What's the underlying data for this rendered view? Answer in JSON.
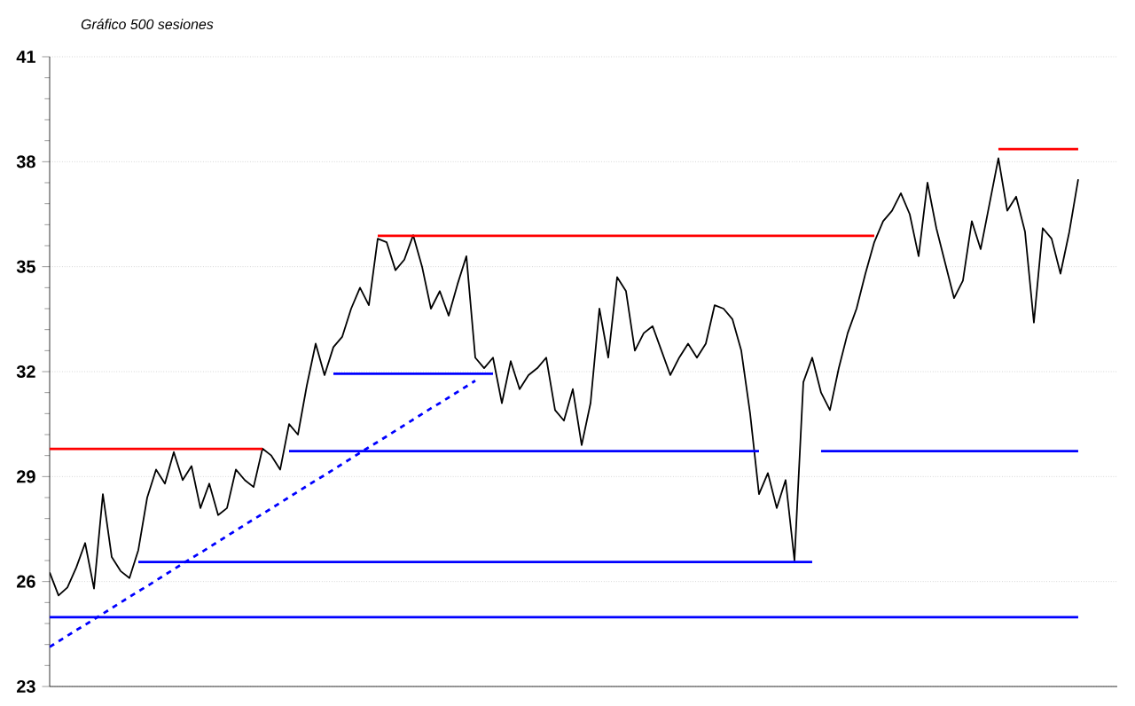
{
  "chart_data": {
    "type": "line",
    "title": "Gráfico 500 sesiones",
    "ylim": [
      23,
      41
    ],
    "categories": [
      null,
      null,
      null,
      null,
      null,
      null,
      null,
      null,
      null,
      null,
      null,
      null,
      null,
      null,
      null,
      null,
      null,
      null,
      null,
      null,
      null,
      null,
      null,
      null,
      null,
      null,
      null,
      null,
      null,
      null,
      null,
      null,
      null,
      null,
      null,
      null,
      null,
      null,
      null,
      null,
      null,
      null,
      null,
      null,
      null,
      null,
      null,
      null,
      null,
      null,
      null,
      null,
      null,
      null,
      null,
      null,
      null,
      null,
      null,
      null,
      null,
      null,
      null,
      null,
      null,
      null,
      null,
      null,
      null,
      null,
      null,
      null,
      null,
      null,
      null,
      null,
      null,
      null,
      null,
      null,
      null,
      null,
      null,
      null,
      null,
      null,
      null,
      null,
      null,
      null,
      null,
      null,
      null,
      null,
      null,
      null,
      null,
      null,
      null,
      null,
      null,
      null,
      null,
      null,
      null,
      null,
      null,
      null,
      null,
      null,
      null,
      null,
      null,
      null,
      null,
      null,
      null
    ],
    "yticks": [
      23,
      26,
      29,
      32,
      35,
      38,
      41
    ],
    "tick_labels": "y",
    "grid": "y",
    "marker": "none",
    "line_style": "solid",
    "series": [
      {
        "color": "#000000",
        "values": [
          26.26,
          25.6,
          25.83,
          26.4,
          27.1,
          25.8,
          28.5,
          26.7,
          26.3,
          26.1,
          26.9,
          28.4,
          29.2,
          28.8,
          29.7,
          28.9,
          29.3,
          28.1,
          28.8,
          27.9,
          28.1,
          29.2,
          28.9,
          28.7,
          29.8,
          29.6,
          29.2,
          30.5,
          30.2,
          31.6,
          32.8,
          31.9,
          32.7,
          33.0,
          33.8,
          34.4,
          33.9,
          35.8,
          35.7,
          34.9,
          35.2,
          35.9,
          35.0,
          33.8,
          34.3,
          33.6,
          34.5,
          35.3,
          32.4,
          32.1,
          32.4,
          31.1,
          32.3,
          31.5,
          31.9,
          32.1,
          32.4,
          30.9,
          30.6,
          31.5,
          29.9,
          31.1,
          33.8,
          32.4,
          34.7,
          34.3,
          32.6,
          33.1,
          33.3,
          32.6,
          31.9,
          32.4,
          32.8,
          32.4,
          32.8,
          33.9,
          33.8,
          33.5,
          32.6,
          30.8,
          28.5,
          29.1,
          28.1,
          28.9,
          26.6,
          31.7,
          32.4,
          31.4,
          30.9,
          32.1,
          33.1,
          33.8,
          34.8,
          35.7,
          36.3,
          36.6,
          37.1,
          36.5,
          35.3,
          37.4,
          36.1,
          35.1,
          34.1,
          34.6,
          36.3,
          35.5,
          36.8,
          38.1,
          36.6,
          37.0,
          36.0,
          33.4,
          36.1,
          35.8,
          34.8,
          36.0,
          37.5
        ]
      },
      {
        "color": "#ff0000",
        "values": [
          29.79,
          29.79,
          29.79,
          29.79,
          29.79,
          29.79,
          29.79,
          29.79,
          29.79,
          29.79,
          29.79,
          29.79,
          29.79,
          29.79,
          29.79,
          29.79,
          29.79,
          29.79,
          29.79,
          29.79,
          29.79,
          29.79,
          29.79,
          29.79,
          29.79,
          null,
          null,
          null,
          null,
          null,
          null,
          null,
          null,
          null,
          null,
          null,
          null,
          null,
          null,
          null,
          null,
          null,
          null,
          null,
          null,
          null,
          null,
          null,
          null,
          null,
          null,
          null,
          null,
          null,
          null,
          null,
          null,
          null,
          null,
          null,
          null,
          null,
          null,
          null,
          null,
          null,
          null,
          null,
          null,
          null,
          null,
          null,
          null,
          null,
          null,
          null,
          null,
          null,
          null,
          null,
          null,
          null,
          null,
          null,
          null,
          null,
          null,
          null,
          null,
          null,
          null,
          null,
          null,
          null,
          null,
          null,
          null,
          null,
          null,
          null,
          null,
          null,
          null,
          null,
          null,
          null,
          null,
          null,
          null,
          null,
          null,
          null,
          null,
          null,
          null,
          null,
          null
        ]
      },
      {
        "color": "#ff0000",
        "values": [
          null,
          null,
          null,
          null,
          null,
          null,
          null,
          null,
          null,
          null,
          null,
          null,
          null,
          null,
          null,
          null,
          null,
          null,
          null,
          null,
          null,
          null,
          null,
          null,
          null,
          null,
          null,
          null,
          null,
          null,
          null,
          null,
          null,
          null,
          null,
          null,
          null,
          35.88,
          35.88,
          35.88,
          35.88,
          35.88,
          35.88,
          35.88,
          35.88,
          35.88,
          35.88,
          35.88,
          35.88,
          35.88,
          35.88,
          35.88,
          35.88,
          35.88,
          35.88,
          35.88,
          35.88,
          35.88,
          35.88,
          35.88,
          35.88,
          35.88,
          35.88,
          35.88,
          35.88,
          35.88,
          35.88,
          35.88,
          35.88,
          35.88,
          35.88,
          35.88,
          35.88,
          35.88,
          35.88,
          35.88,
          35.88,
          35.88,
          35.88,
          35.88,
          35.88,
          35.88,
          35.88,
          35.88,
          35.88,
          35.88,
          35.88,
          35.88,
          35.88,
          35.88,
          35.88,
          35.88,
          35.88,
          35.88,
          null,
          null,
          null,
          null,
          null,
          null,
          null,
          null,
          null,
          null,
          null,
          null,
          null,
          null,
          null,
          null,
          null,
          null,
          null,
          null,
          null,
          null,
          null
        ]
      },
      {
        "color": "#ff0000",
        "values": [
          null,
          null,
          null,
          null,
          null,
          null,
          null,
          null,
          null,
          null,
          null,
          null,
          null,
          null,
          null,
          null,
          null,
          null,
          null,
          null,
          null,
          null,
          null,
          null,
          null,
          null,
          null,
          null,
          null,
          null,
          null,
          null,
          null,
          null,
          null,
          null,
          null,
          null,
          null,
          null,
          null,
          null,
          null,
          null,
          null,
          null,
          null,
          null,
          null,
          null,
          null,
          null,
          null,
          null,
          null,
          null,
          null,
          null,
          null,
          null,
          null,
          null,
          null,
          null,
          null,
          null,
          null,
          null,
          null,
          null,
          null,
          null,
          null,
          null,
          null,
          null,
          null,
          null,
          null,
          null,
          null,
          null,
          null,
          null,
          null,
          null,
          null,
          null,
          null,
          null,
          null,
          null,
          null,
          null,
          null,
          null,
          null,
          null,
          null,
          null,
          null,
          null,
          null,
          null,
          null,
          null,
          null,
          38.36,
          38.36,
          38.36,
          38.36,
          38.36,
          38.36,
          38.36,
          38.36,
          38.36,
          38.36
        ]
      },
      {
        "color": "#0000ff",
        "values": [
          null,
          null,
          null,
          null,
          null,
          null,
          null,
          null,
          null,
          null,
          null,
          null,
          null,
          null,
          null,
          null,
          null,
          null,
          null,
          null,
          null,
          null,
          null,
          null,
          null,
          null,
          null,
          null,
          null,
          null,
          null,
          null,
          31.94,
          31.94,
          31.94,
          31.94,
          31.94,
          31.94,
          31.94,
          31.94,
          31.94,
          31.94,
          31.94,
          31.94,
          31.94,
          31.94,
          31.94,
          31.94,
          31.94,
          31.94,
          31.94,
          null,
          null,
          null,
          null,
          null,
          null,
          null,
          null,
          null,
          null,
          null,
          null,
          null,
          null,
          null,
          null,
          null,
          null,
          null,
          null,
          null,
          null,
          null,
          null,
          null,
          null,
          null,
          null,
          null,
          null,
          null,
          null,
          null,
          null,
          null,
          null,
          null,
          null,
          null,
          null,
          null,
          null,
          null,
          null,
          null,
          null,
          null,
          null,
          null,
          null,
          null,
          null,
          null,
          null,
          null,
          null,
          null,
          null,
          null,
          null,
          null,
          null,
          null,
          null,
          null,
          null
        ]
      },
      {
        "color": "#0000ff",
        "values": [
          null,
          null,
          null,
          null,
          null,
          null,
          null,
          null,
          null,
          null,
          null,
          null,
          null,
          null,
          null,
          null,
          null,
          null,
          null,
          null,
          null,
          null,
          null,
          null,
          null,
          null,
          null,
          29.73,
          29.73,
          29.73,
          29.73,
          29.73,
          29.73,
          29.73,
          29.73,
          29.73,
          29.73,
          29.73,
          29.73,
          29.73,
          29.73,
          29.73,
          29.73,
          29.73,
          29.73,
          29.73,
          29.73,
          29.73,
          29.73,
          29.73,
          29.73,
          29.73,
          29.73,
          29.73,
          29.73,
          29.73,
          29.73,
          29.73,
          29.73,
          29.73,
          29.73,
          29.73,
          29.73,
          29.73,
          29.73,
          29.73,
          29.73,
          29.73,
          29.73,
          29.73,
          29.73,
          29.73,
          29.73,
          29.73,
          29.73,
          29.73,
          29.73,
          29.73,
          29.73,
          29.73,
          29.73,
          null,
          null,
          null,
          null,
          null,
          null,
          null,
          null,
          null,
          null,
          null,
          null,
          null,
          null,
          null,
          null,
          null,
          null,
          null,
          null,
          null,
          null,
          null,
          null,
          null,
          null,
          null,
          null,
          null,
          null,
          null,
          null,
          null,
          null,
          null,
          null
        ]
      },
      {
        "color": "#0000ff",
        "values": [
          null,
          null,
          null,
          null,
          null,
          null,
          null,
          null,
          null,
          null,
          null,
          null,
          null,
          null,
          null,
          null,
          null,
          null,
          null,
          null,
          null,
          null,
          null,
          null,
          null,
          null,
          null,
          null,
          null,
          null,
          null,
          null,
          null,
          null,
          null,
          null,
          null,
          null,
          null,
          null,
          null,
          null,
          null,
          null,
          null,
          null,
          null,
          null,
          null,
          null,
          null,
          null,
          null,
          null,
          null,
          null,
          null,
          null,
          null,
          null,
          null,
          null,
          null,
          null,
          null,
          null,
          null,
          null,
          null,
          null,
          null,
          null,
          null,
          null,
          null,
          null,
          null,
          null,
          null,
          null,
          null,
          null,
          null,
          null,
          null,
          null,
          null,
          29.73,
          29.73,
          29.73,
          29.73,
          29.73,
          29.73,
          29.73,
          29.73,
          29.73,
          29.73,
          29.73,
          29.73,
          29.73,
          29.73,
          29.73,
          29.73,
          29.73,
          29.73,
          29.73,
          29.73,
          29.73,
          29.73,
          29.73,
          29.73,
          29.73,
          29.73,
          29.73,
          29.73,
          29.73,
          29.73
        ]
      },
      {
        "color": "#0000ff",
        "values": [
          null,
          null,
          null,
          null,
          null,
          null,
          null,
          null,
          null,
          null,
          26.56,
          26.56,
          26.56,
          26.56,
          26.56,
          26.56,
          26.56,
          26.56,
          26.56,
          26.56,
          26.56,
          26.56,
          26.56,
          26.56,
          26.56,
          26.56,
          26.56,
          26.56,
          26.56,
          26.56,
          26.56,
          26.56,
          26.56,
          26.56,
          26.56,
          26.56,
          26.56,
          26.56,
          26.56,
          26.56,
          26.56,
          26.56,
          26.56,
          26.56,
          26.56,
          26.56,
          26.56,
          26.56,
          26.56,
          26.56,
          26.56,
          26.56,
          26.56,
          26.56,
          26.56,
          26.56,
          26.56,
          26.56,
          26.56,
          26.56,
          26.56,
          26.56,
          26.56,
          26.56,
          26.56,
          26.56,
          26.56,
          26.56,
          26.56,
          26.56,
          26.56,
          26.56,
          26.56,
          26.56,
          26.56,
          26.56,
          26.56,
          26.56,
          26.56,
          26.56,
          26.56,
          26.56,
          26.56,
          26.56,
          26.56,
          26.56,
          26.56,
          null,
          null,
          null,
          null,
          null,
          null,
          null,
          null,
          null,
          null,
          null,
          null,
          null,
          null,
          null,
          null,
          null,
          null,
          null,
          null,
          null,
          null,
          null,
          null,
          null,
          null,
          null,
          null,
          null,
          null
        ]
      },
      {
        "color": "#0000ff",
        "values": [
          24.98,
          24.98,
          24.98,
          24.98,
          24.98,
          24.98,
          24.98,
          24.98,
          24.98,
          24.98,
          24.98,
          24.98,
          24.98,
          24.98,
          24.98,
          24.98,
          24.98,
          24.98,
          24.98,
          24.98,
          24.98,
          24.98,
          24.98,
          24.98,
          24.98,
          24.98,
          24.98,
          24.98,
          24.98,
          24.98,
          24.98,
          24.98,
          24.98,
          24.98,
          24.98,
          24.98,
          24.98,
          24.98,
          24.98,
          24.98,
          24.98,
          24.98,
          24.98,
          24.98,
          24.98,
          24.98,
          24.98,
          24.98,
          24.98,
          24.98,
          24.98,
          24.98,
          24.98,
          24.98,
          24.98,
          24.98,
          24.98,
          24.98,
          24.98,
          24.98,
          24.98,
          24.98,
          24.98,
          24.98,
          24.98,
          24.98,
          24.98,
          24.98,
          24.98,
          24.98,
          24.98,
          24.98,
          24.98,
          24.98,
          24.98,
          24.98,
          24.98,
          24.98,
          24.98,
          24.98,
          24.98,
          24.98,
          24.98,
          24.98,
          24.98,
          24.98,
          24.98,
          24.98,
          24.98,
          24.98,
          24.98,
          24.98,
          24.98,
          24.98,
          24.98,
          24.98,
          24.98,
          24.98,
          24.98,
          24.98,
          24.98,
          24.98,
          24.98,
          24.98,
          24.98,
          24.98,
          24.98,
          24.98,
          24.98,
          24.98,
          24.98,
          24.98,
          24.98,
          24.98,
          24.98,
          24.98,
          24.98
        ]
      },
      {
        "color": "#0000ff",
        "line_style": "dashed",
        "values": [
          24.13,
          24.29,
          24.45,
          24.61,
          24.76,
          24.92,
          25.08,
          25.24,
          25.4,
          25.56,
          25.72,
          25.87,
          26.03,
          26.19,
          26.35,
          26.51,
          26.67,
          26.82,
          26.98,
          27.14,
          27.3,
          27.46,
          27.62,
          27.78,
          27.93,
          28.09,
          28.25,
          28.41,
          28.57,
          28.73,
          28.89,
          29.04,
          29.2,
          29.36,
          29.52,
          29.68,
          29.84,
          29.99,
          30.15,
          30.31,
          30.47,
          30.63,
          30.79,
          30.95,
          31.1,
          31.26,
          31.42,
          31.58,
          31.74,
          null,
          null,
          null,
          null,
          null,
          null,
          null,
          null,
          null,
          null,
          null,
          null,
          null,
          null,
          null,
          null,
          null,
          null,
          null,
          null,
          null,
          null,
          null,
          null,
          null,
          null,
          null,
          null,
          null,
          null,
          null,
          null,
          null,
          null,
          null,
          null,
          null,
          null,
          null,
          null,
          null,
          null,
          null,
          null,
          null,
          null,
          null,
          null,
          null,
          null,
          null,
          null,
          null,
          null,
          null,
          null,
          null,
          null,
          null,
          null,
          null,
          null,
          null,
          null,
          null,
          null,
          null,
          null
        ]
      }
    ]
  }
}
